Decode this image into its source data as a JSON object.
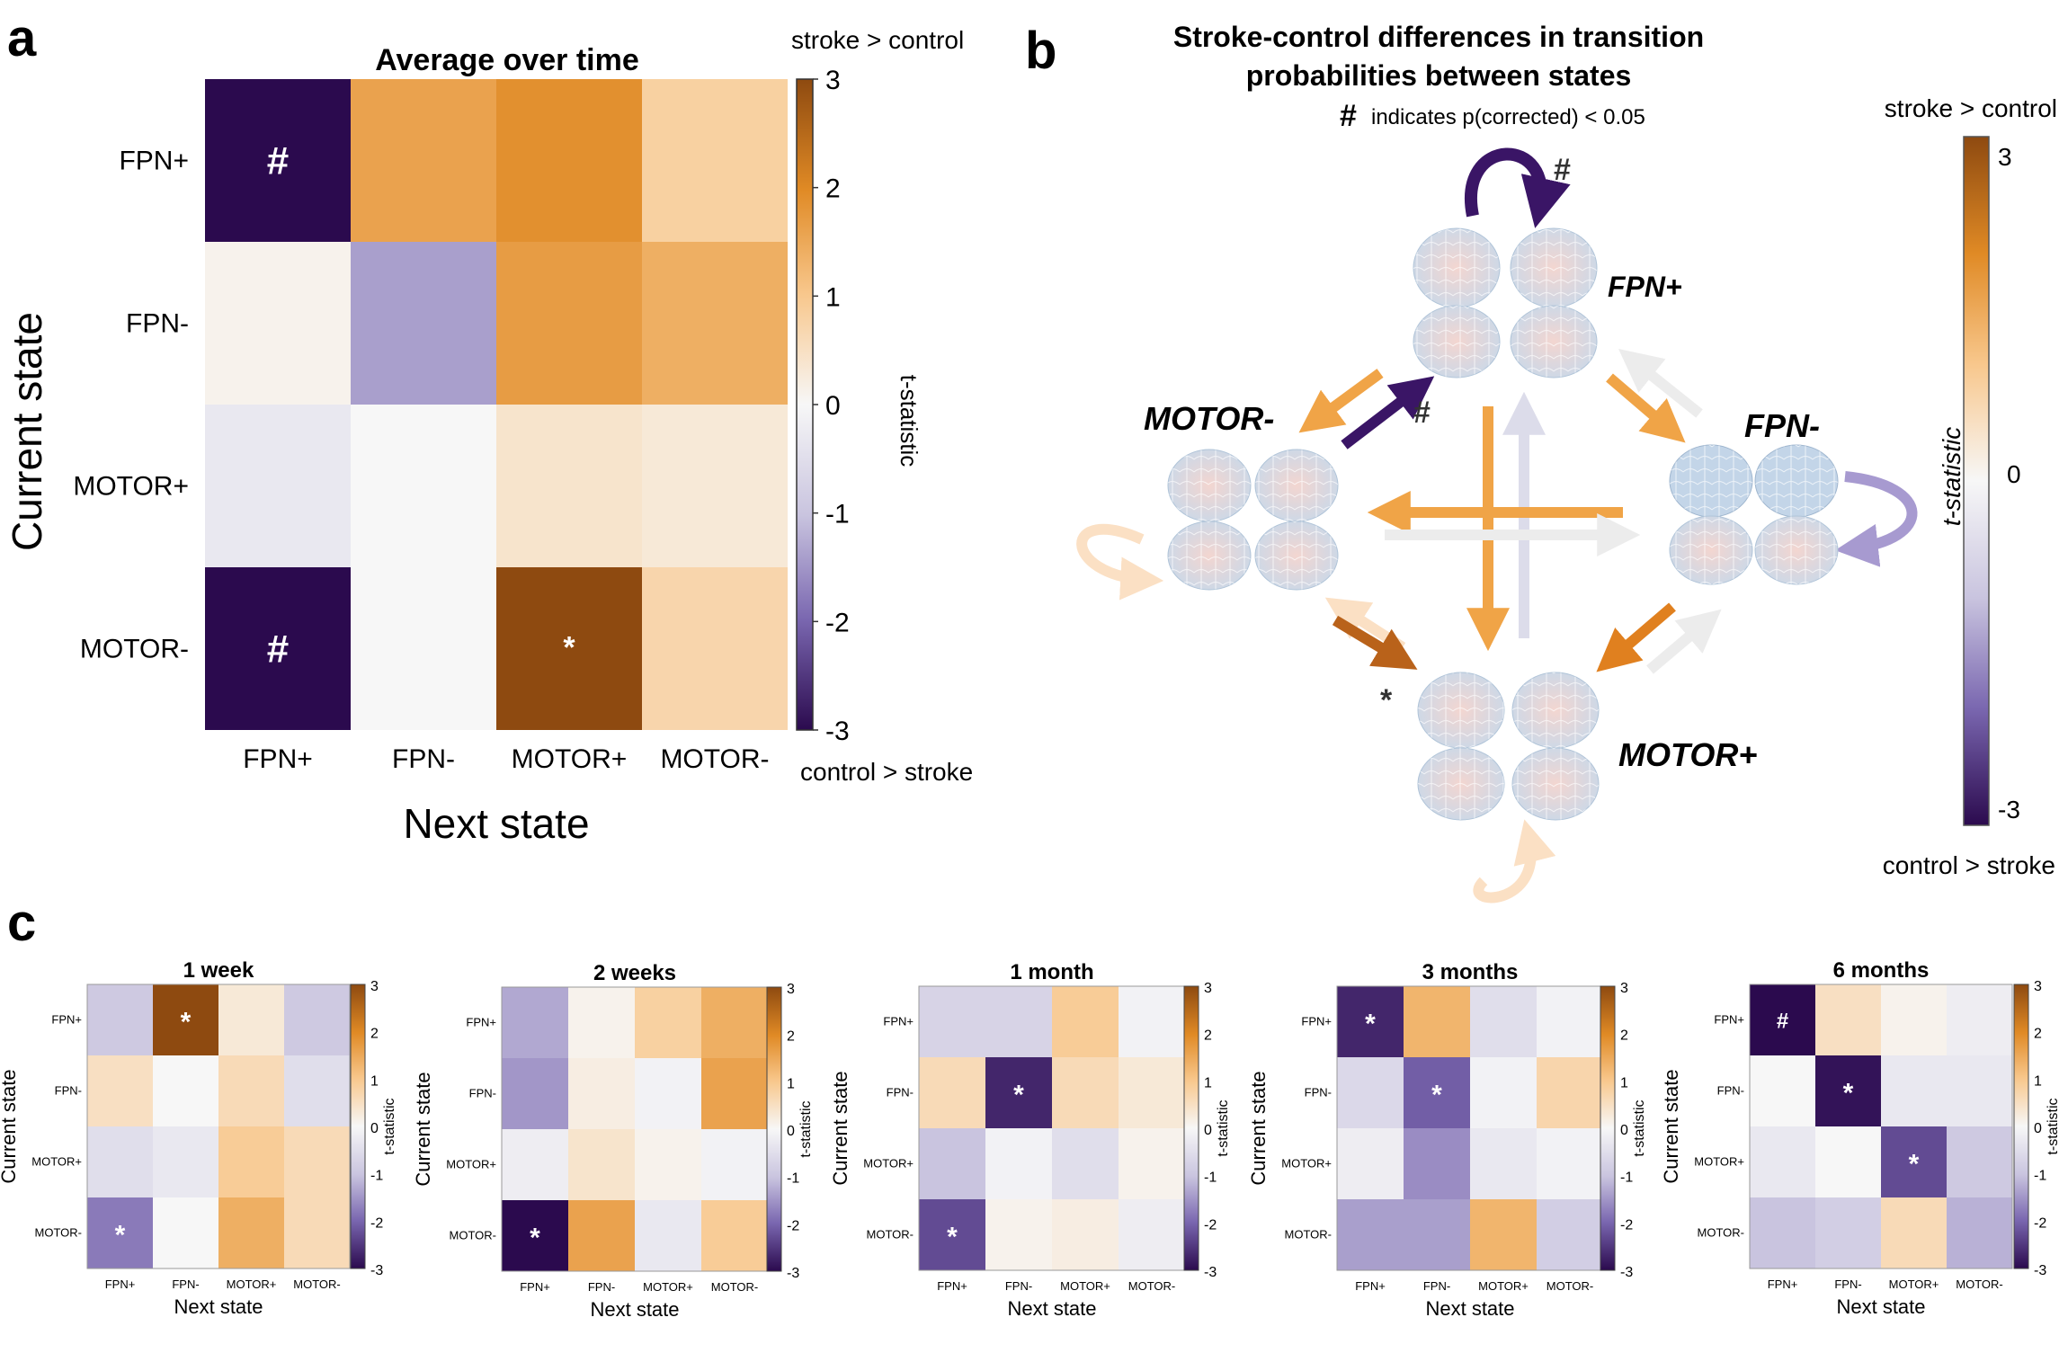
{
  "panels": {
    "a": "a",
    "b": "b",
    "c": "c"
  },
  "colorbar": {
    "top": "stroke > control",
    "bottom": "control > stroke",
    "ylabel": "t-statistic",
    "ticks_a": [
      "3",
      "2",
      "1",
      "0",
      "-1",
      "-2",
      "-3"
    ],
    "ticks_b": [
      "3",
      "0",
      "-3"
    ],
    "colors": {
      "max": "#8e4a10",
      "high": "#f3a03c",
      "zero": "#f7f7f7",
      "low": "#8b80bb",
      "min": "#2b0a4e"
    }
  },
  "chart_data": [
    {
      "id": "panel-a",
      "type": "heatmap",
      "title": "Average over time",
      "xlabel": "Next state",
      "ylabel": "Current state",
      "rows": [
        "FPN+",
        "FPN-",
        "MOTOR+",
        "MOTOR-"
      ],
      "cols": [
        "FPN+",
        "FPN-",
        "MOTOR+",
        "MOTOR-"
      ],
      "values": [
        [
          -3.2,
          1.6,
          1.9,
          0.8
        ],
        [
          0.1,
          -1.4,
          1.7,
          1.4
        ],
        [
          -0.3,
          0.0,
          0.4,
          0.3
        ],
        [
          -3.2,
          0.0,
          3.0,
          0.7
        ]
      ],
      "marks": [
        [
          "#",
          "",
          "",
          ""
        ],
        [
          "",
          "",
          "",
          ""
        ],
        [
          "",
          "",
          "",
          ""
        ],
        [
          "#",
          "",
          "*",
          ""
        ]
      ],
      "clim": [
        -3,
        3
      ],
      "colorbar_ticks": [
        3,
        2,
        1,
        0,
        -1,
        -2,
        -3
      ]
    },
    {
      "id": "c-1week",
      "type": "heatmap",
      "title": "1 week",
      "xlabel": "Next state",
      "ylabel": "Current state",
      "rows": [
        "FPN+",
        "FPN-",
        "MOTOR+",
        "MOTOR-"
      ],
      "cols": [
        "FPN+",
        "FPN-",
        "MOTOR+",
        "MOTOR-"
      ],
      "values": [
        [
          -0.9,
          3.0,
          0.3,
          -0.9
        ],
        [
          0.5,
          0.0,
          0.6,
          -0.5
        ],
        [
          -0.5,
          -0.3,
          0.9,
          0.6
        ],
        [
          -1.8,
          0.0,
          1.4,
          0.6
        ]
      ],
      "marks": [
        [
          "",
          "*",
          "",
          ""
        ],
        [
          "",
          "",
          "",
          ""
        ],
        [
          "",
          "",
          "",
          ""
        ],
        [
          "*",
          "",
          "",
          ""
        ]
      ],
      "clim": [
        -3,
        3
      ]
    },
    {
      "id": "c-2weeks",
      "type": "heatmap",
      "title": "2 weeks",
      "xlabel": "Next state",
      "ylabel": "Current state",
      "rows": [
        "FPN+",
        "FPN-",
        "MOTOR+",
        "MOTOR-"
      ],
      "cols": [
        "FPN+",
        "FPN-",
        "MOTOR+",
        "MOTOR-"
      ],
      "values": [
        [
          -1.3,
          0.1,
          0.8,
          1.4
        ],
        [
          -1.5,
          0.2,
          -0.1,
          1.6
        ],
        [
          -0.2,
          0.4,
          0.1,
          -0.1
        ],
        [
          -3.0,
          1.6,
          -0.3,
          0.9
        ]
      ],
      "marks": [
        [
          "",
          "",
          "",
          ""
        ],
        [
          "",
          "",
          "",
          ""
        ],
        [
          "",
          "",
          "",
          ""
        ],
        [
          "*",
          "",
          "",
          ""
        ]
      ],
      "clim": [
        -3,
        3
      ]
    },
    {
      "id": "c-1month",
      "type": "heatmap",
      "title": "1 month",
      "xlabel": "Next state",
      "ylabel": "Current state",
      "rows": [
        "FPN+",
        "FPN-",
        "MOTOR+",
        "MOTOR-"
      ],
      "cols": [
        "FPN+",
        "FPN-",
        "MOTOR+",
        "MOTOR-"
      ],
      "values": [
        [
          -0.7,
          -0.7,
          0.9,
          -0.1
        ],
        [
          0.6,
          -2.7,
          0.6,
          0.3
        ],
        [
          -1.0,
          -0.1,
          -0.5,
          0.1
        ],
        [
          -2.3,
          0.1,
          0.2,
          -0.2
        ]
      ],
      "marks": [
        [
          "",
          "",
          "",
          ""
        ],
        [
          "",
          "*",
          "",
          ""
        ],
        [
          "",
          "",
          "",
          ""
        ],
        [
          "*",
          "",
          "",
          ""
        ]
      ],
      "clim": [
        -3,
        3
      ]
    },
    {
      "id": "c-3months",
      "type": "heatmap",
      "title": "3 months",
      "xlabel": "Next state",
      "ylabel": "Current state",
      "rows": [
        "FPN+",
        "FPN-",
        "MOTOR+",
        "MOTOR-"
      ],
      "cols": [
        "FPN+",
        "FPN-",
        "MOTOR+",
        "MOTOR-"
      ],
      "values": [
        [
          -2.7,
          1.3,
          -0.5,
          -0.1
        ],
        [
          -0.6,
          -2.1,
          -0.1,
          0.7
        ],
        [
          -0.2,
          -1.6,
          -0.3,
          -0.1
        ],
        [
          -1.4,
          -1.4,
          1.3,
          -0.8
        ]
      ],
      "marks": [
        [
          "*",
          "",
          "",
          ""
        ],
        [
          "",
          "*",
          "",
          ""
        ],
        [
          "",
          "",
          "",
          ""
        ],
        [
          "",
          "",
          "",
          ""
        ]
      ],
      "clim": [
        -3,
        3
      ]
    },
    {
      "id": "c-6months",
      "type": "heatmap",
      "title": "6 months",
      "xlabel": "Next state",
      "ylabel": "Current state",
      "rows": [
        "FPN+",
        "FPN-",
        "MOTOR+",
        "MOTOR-"
      ],
      "cols": [
        "FPN+",
        "FPN-",
        "MOTOR+",
        "MOTOR-"
      ],
      "values": [
        [
          -3.2,
          0.5,
          0.1,
          -0.2
        ],
        [
          0.0,
          -2.9,
          -0.3,
          -0.3
        ],
        [
          -0.3,
          0.0,
          -2.3,
          -0.9
        ],
        [
          -1.0,
          -0.8,
          0.6,
          -1.2
        ]
      ],
      "marks": [
        [
          "#",
          "",
          "",
          ""
        ],
        [
          "",
          "*",
          "",
          ""
        ],
        [
          "",
          "",
          "*",
          ""
        ],
        [
          "",
          "",
          "",
          ""
        ]
      ],
      "clim": [
        -3,
        3
      ]
    }
  ],
  "diagram": {
    "title_line1": "Stroke-control differences in transition",
    "title_line2": "probabilities between states",
    "note_symbol": "#",
    "note": "indicates p(corrected) < 0.05",
    "states": [
      "FPN+",
      "FPN-",
      "MOTOR+",
      "MOTOR-"
    ],
    "marks": {
      "fpnp_self": "#",
      "motm_to_fpnp": "#",
      "motm_to_motp": "*"
    }
  }
}
